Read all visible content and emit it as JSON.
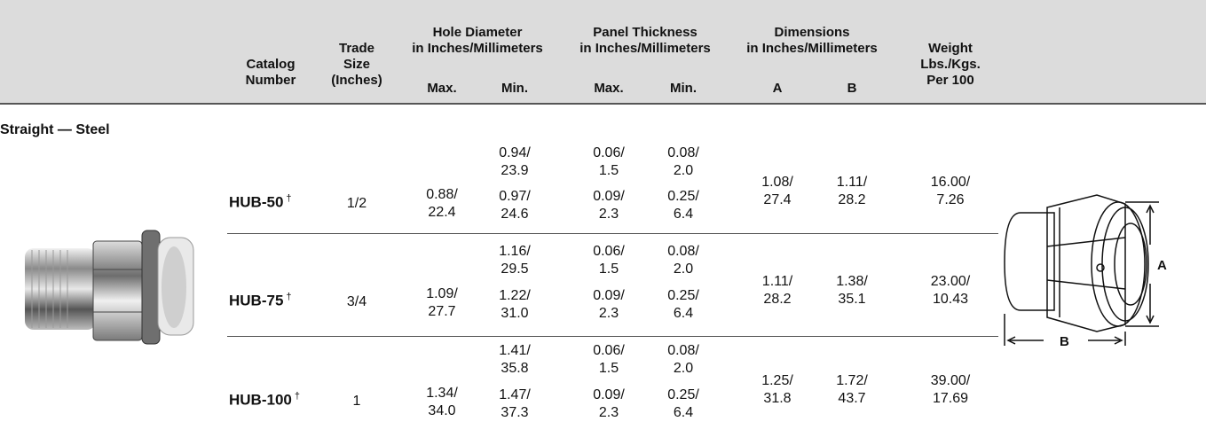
{
  "header": {
    "catalog": [
      "Catalog",
      "Number"
    ],
    "trade": [
      "Trade",
      "Size",
      "(Inches)"
    ],
    "hole_group": [
      "Hole Diameter",
      "in Inches/Millimeters"
    ],
    "panel_group": [
      "Panel Thickness",
      "in Inches/Millimeters"
    ],
    "dim_group": [
      "Dimensions",
      "in Inches/Millimeters"
    ],
    "weight": [
      "Weight",
      "Lbs./Kgs.",
      "Per 100"
    ],
    "sub": [
      "Max.",
      "Min.",
      "Max.",
      "Min.",
      "A",
      "B"
    ]
  },
  "section_title": "Straight — Steel",
  "rows": [
    {
      "catalog": "HUB-50",
      "dagger": "†",
      "trade": "1/2",
      "hole_max": [
        "0.88/",
        "22.4"
      ],
      "hole_min": [
        [
          "0.94/",
          "23.9"
        ],
        [
          "0.97/",
          "24.6"
        ]
      ],
      "panel_max": [
        [
          "0.06/",
          "1.5"
        ],
        [
          "0.09/",
          "2.3"
        ]
      ],
      "panel_min": [
        [
          "0.08/",
          "2.0"
        ],
        [
          "0.25/",
          "6.4"
        ]
      ],
      "a": [
        "1.08/",
        "27.4"
      ],
      "b": [
        "1.11/",
        "28.2"
      ],
      "weight": [
        "16.00/",
        "7.26"
      ]
    },
    {
      "catalog": "HUB-75",
      "dagger": "†",
      "trade": "3/4",
      "hole_max": [
        "1.09/",
        "27.7"
      ],
      "hole_min": [
        [
          "1.16/",
          "29.5"
        ],
        [
          "1.22/",
          "31.0"
        ]
      ],
      "panel_max": [
        [
          "0.06/",
          "1.5"
        ],
        [
          "0.09/",
          "2.3"
        ]
      ],
      "panel_min": [
        [
          "0.08/",
          "2.0"
        ],
        [
          "0.25/",
          "6.4"
        ]
      ],
      "a": [
        "1.11/",
        "28.2"
      ],
      "b": [
        "1.38/",
        "35.1"
      ],
      "weight": [
        "23.00/",
        "10.43"
      ]
    },
    {
      "catalog": "HUB-100",
      "dagger": "†",
      "trade": "1",
      "hole_max": [
        "1.34/",
        "34.0"
      ],
      "hole_min": [
        [
          "1.41/",
          "35.8"
        ],
        [
          "1.47/",
          "37.3"
        ]
      ],
      "panel_max": [
        [
          "0.06/",
          "1.5"
        ],
        [
          "0.09/",
          "2.3"
        ]
      ],
      "panel_min": [
        [
          "0.08/",
          "2.0"
        ],
        [
          "0.25/",
          "6.4"
        ]
      ],
      "a": [
        "1.25/",
        "31.8"
      ],
      "b": [
        "1.72/",
        "43.7"
      ],
      "weight": [
        "39.00/",
        "17.69"
      ]
    }
  ],
  "drawing": {
    "label_a": "A",
    "label_b": "B"
  }
}
